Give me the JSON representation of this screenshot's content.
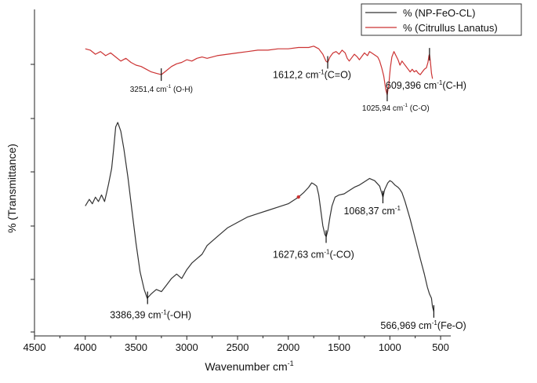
{
  "chart_data": {
    "type": "line",
    "xlabel": "Wavenumber cm",
    "xlabel_superscript": "-1",
    "ylabel": "% (Transmittance)",
    "xlim": [
      4500,
      400
    ],
    "x_reversed": true,
    "x_ticks": [
      4500,
      4000,
      3500,
      3000,
      2500,
      2000,
      1500,
      1000,
      500
    ],
    "y_ticks_labelled": false,
    "legend_position": "top-right",
    "series": [
      {
        "name": "% (NP-FeO-CL)",
        "color": "#333333",
        "points": [
          [
            4000,
            42
          ],
          [
            3960,
            45
          ],
          [
            3930,
            43
          ],
          [
            3900,
            46
          ],
          [
            3870,
            44
          ],
          [
            3840,
            47
          ],
          [
            3810,
            44
          ],
          [
            3790,
            48
          ],
          [
            3770,
            52
          ],
          [
            3740,
            59
          ],
          [
            3720,
            68
          ],
          [
            3700,
            78
          ],
          [
            3680,
            80
          ],
          [
            3650,
            76
          ],
          [
            3620,
            68
          ],
          [
            3580,
            55
          ],
          [
            3540,
            40
          ],
          [
            3500,
            25
          ],
          [
            3460,
            12
          ],
          [
            3420,
            4
          ],
          [
            3390,
            0
          ],
          [
            3350,
            2
          ],
          [
            3300,
            4
          ],
          [
            3250,
            3
          ],
          [
            3200,
            6
          ],
          [
            3150,
            9
          ],
          [
            3100,
            11
          ],
          [
            3050,
            9
          ],
          [
            3000,
            13
          ],
          [
            2950,
            16
          ],
          [
            2900,
            18
          ],
          [
            2850,
            20
          ],
          [
            2800,
            24
          ],
          [
            2700,
            28
          ],
          [
            2600,
            32
          ],
          [
            2500,
            34.5
          ],
          [
            2400,
            37
          ],
          [
            2300,
            38.5
          ],
          [
            2200,
            40
          ],
          [
            2100,
            41.5
          ],
          [
            2000,
            43
          ],
          [
            1950,
            44.5
          ],
          [
            1900,
            46
          ],
          [
            1850,
            48
          ],
          [
            1800,
            50.5
          ],
          [
            1770,
            52.5
          ],
          [
            1750,
            52
          ],
          [
            1720,
            51
          ],
          [
            1700,
            47
          ],
          [
            1680,
            40
          ],
          [
            1660,
            33
          ],
          [
            1640,
            29
          ],
          [
            1627,
            28
          ],
          [
            1610,
            31
          ],
          [
            1590,
            37
          ],
          [
            1570,
            42
          ],
          [
            1540,
            46
          ],
          [
            1500,
            47
          ],
          [
            1450,
            47.5
          ],
          [
            1400,
            49
          ],
          [
            1350,
            50.5
          ],
          [
            1300,
            51.5
          ],
          [
            1250,
            53
          ],
          [
            1200,
            54.5
          ],
          [
            1150,
            53.5
          ],
          [
            1100,
            51
          ],
          [
            1068,
            46
          ],
          [
            1050,
            49.5
          ],
          [
            1020,
            52.5
          ],
          [
            1000,
            53.5
          ],
          [
            980,
            53
          ],
          [
            950,
            51.5
          ],
          [
            920,
            50.5
          ],
          [
            900,
            49.5
          ],
          [
            880,
            48
          ],
          [
            850,
            44
          ],
          [
            800,
            36
          ],
          [
            750,
            27
          ],
          [
            700,
            18
          ],
          [
            660,
            11
          ],
          [
            630,
            5
          ],
          [
            610,
            2
          ],
          [
            590,
            0
          ],
          [
            580,
            -4
          ],
          [
            567,
            -6
          ]
        ]
      },
      {
        "name": "% (Citrullus Lanatus)",
        "color": "#cc3333",
        "points": [
          [
            4000,
            93
          ],
          [
            3950,
            92.5
          ],
          [
            3900,
            91
          ],
          [
            3850,
            92
          ],
          [
            3800,
            90.5
          ],
          [
            3750,
            91.5
          ],
          [
            3700,
            90
          ],
          [
            3650,
            88.5
          ],
          [
            3600,
            89.5
          ],
          [
            3550,
            88
          ],
          [
            3500,
            87
          ],
          [
            3450,
            86.5
          ],
          [
            3400,
            85.5
          ],
          [
            3350,
            84.5
          ],
          [
            3300,
            84
          ],
          [
            3251,
            83.5
          ],
          [
            3200,
            85
          ],
          [
            3150,
            86.5
          ],
          [
            3100,
            87.5
          ],
          [
            3050,
            88
          ],
          [
            3000,
            89
          ],
          [
            2950,
            88.5
          ],
          [
            2900,
            89.5
          ],
          [
            2850,
            90
          ],
          [
            2800,
            89.5
          ],
          [
            2700,
            90.5
          ],
          [
            2600,
            91
          ],
          [
            2500,
            91.5
          ],
          [
            2400,
            92
          ],
          [
            2300,
            92.5
          ],
          [
            2200,
            92.5
          ],
          [
            2100,
            93
          ],
          [
            2000,
            93
          ],
          [
            1900,
            93.5
          ],
          [
            1800,
            93.5
          ],
          [
            1750,
            94
          ],
          [
            1700,
            93
          ],
          [
            1660,
            91
          ],
          [
            1630,
            88.5
          ],
          [
            1612,
            88
          ],
          [
            1590,
            90
          ],
          [
            1560,
            91.5
          ],
          [
            1530,
            92
          ],
          [
            1500,
            91
          ],
          [
            1470,
            92.5
          ],
          [
            1440,
            91.5
          ],
          [
            1420,
            89.5
          ],
          [
            1400,
            88.5
          ],
          [
            1380,
            89.5
          ],
          [
            1350,
            91
          ],
          [
            1320,
            90
          ],
          [
            1300,
            89
          ],
          [
            1270,
            90.5
          ],
          [
            1250,
            91.5
          ],
          [
            1220,
            90.5
          ],
          [
            1200,
            92
          ],
          [
            1180,
            91.5
          ],
          [
            1160,
            91
          ],
          [
            1140,
            90.5
          ],
          [
            1120,
            90
          ],
          [
            1100,
            88.5
          ],
          [
            1080,
            86
          ],
          [
            1060,
            83
          ],
          [
            1040,
            78
          ],
          [
            1025.94,
            76
          ],
          [
            1010,
            80
          ],
          [
            995,
            86
          ],
          [
            980,
            90
          ],
          [
            960,
            92
          ],
          [
            940,
            90.5
          ],
          [
            920,
            89
          ],
          [
            900,
            87
          ],
          [
            880,
            88.5
          ],
          [
            860,
            87.5
          ],
          [
            840,
            86.5
          ],
          [
            820,
            85.5
          ],
          [
            800,
            84.5
          ],
          [
            780,
            85.5
          ],
          [
            760,
            84.5
          ],
          [
            740,
            85
          ],
          [
            720,
            84
          ],
          [
            700,
            83.5
          ],
          [
            680,
            84.5
          ],
          [
            660,
            85.5
          ],
          [
            640,
            86
          ],
          [
            625,
            88
          ],
          [
            615,
            90.5
          ],
          [
            609.396,
            91
          ],
          [
            600,
            88
          ],
          [
            590,
            84
          ],
          [
            580,
            82
          ]
        ]
      }
    ],
    "annotations": [
      {
        "text": "3251,4 cm",
        "sup": "-1",
        "rest": " (O-H)",
        "x": 3251.4,
        "series": 1,
        "small": true
      },
      {
        "text": "1612,2 cm",
        "sup": "-1",
        "rest": "(C=O)",
        "x": 1612.2,
        "series": 1,
        "small": false
      },
      {
        "text": "609,396 cm",
        "sup": "-1",
        "rest": "(C-H)",
        "x": 609.396,
        "series": 1,
        "small": false
      },
      {
        "text": "1025,94 cm",
        "sup": "-1",
        "rest": " (C-O)",
        "x": 1025.94,
        "series": 1,
        "small": true
      },
      {
        "text": "1068,37 cm",
        "sup": "-1",
        "rest": "",
        "x": 1068.37,
        "series": 0,
        "small": false
      },
      {
        "text": "1627,63 cm",
        "sup": "-1",
        "rest": "(-CO)",
        "x": 1627.63,
        "series": 0,
        "small": false
      },
      {
        "text": "3386,39 cm",
        "sup": "-1",
        "rest": "(-OH)",
        "x": 3386.39,
        "series": 0,
        "small": false
      },
      {
        "text": "566,969 cm",
        "sup": "-1",
        "rest": "(Fe-O)",
        "x": 566.969,
        "series": 0,
        "small": false
      }
    ]
  }
}
